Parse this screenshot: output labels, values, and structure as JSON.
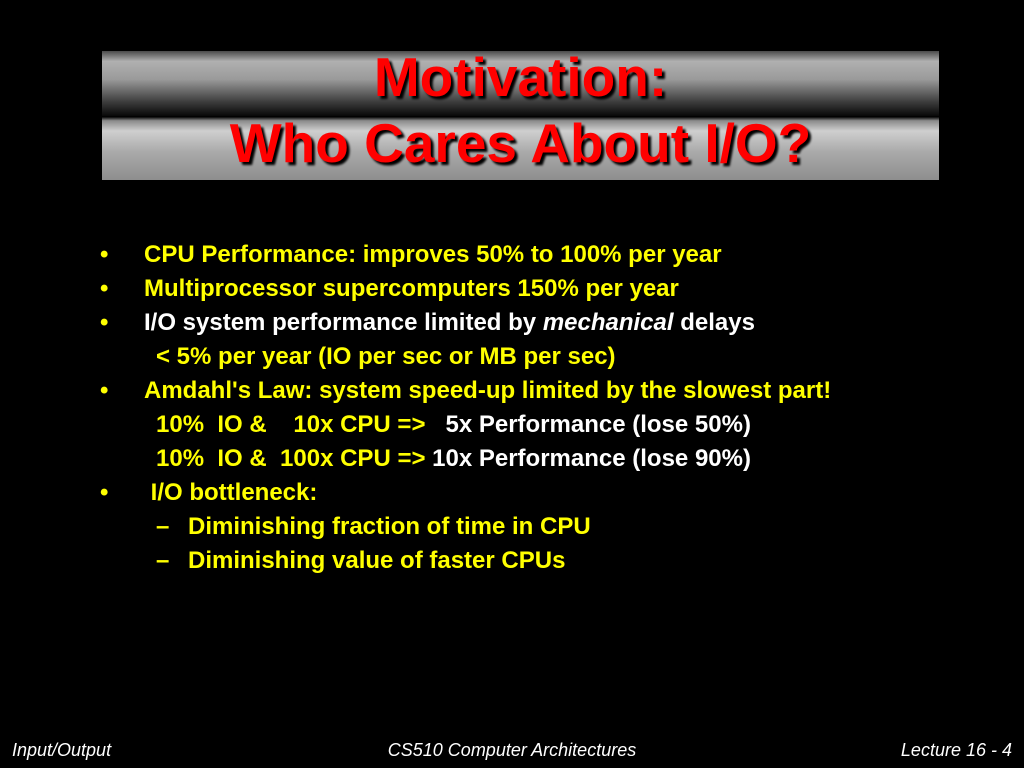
{
  "slide": {
    "title_line1": "Motivation:",
    "title_line2": "Who Cares About I/O?",
    "bullet_symbol": "•",
    "dash_symbol": "–",
    "items": [
      {
        "text": "CPU Performance: improves 50% to 100% per year"
      },
      {
        "text": "Multiprocessor supercomputers 150% per year"
      },
      {
        "before": "I/O system performance limited by ",
        "emph": "mechanical",
        "after": " delays"
      },
      {
        "text": "< 5% per year (IO per sec or MB per sec)"
      },
      {
        "text": "Amdahl's Law: system speed-up limited by the slowest part!"
      },
      {
        "yellow": "10%  IO &    10x CPU =>",
        "white": "   5x Performance (lose 50%)"
      },
      {
        "yellow": "10%  IO &  100x CPU =>",
        "white": " 10x Performance (lose 90%)"
      },
      {
        "text": " I/O bottleneck:"
      },
      {
        "text": "Diminishing fraction of time in CPU"
      },
      {
        "text": "Diminishing value of faster CPUs"
      }
    ]
  },
  "footer": {
    "left": "Input/Output",
    "center": "CS510 Computer Architectures",
    "right": "Lecture 16 - 4"
  },
  "colors": {
    "title": "#ff0000",
    "bullet_text": "#ffff00",
    "body_text": "#ffffff",
    "background": "#000000"
  }
}
